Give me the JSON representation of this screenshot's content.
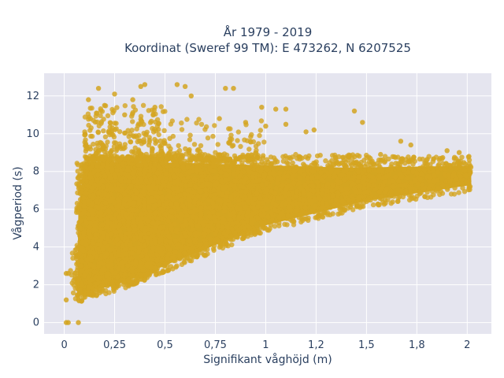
{
  "chart_data": {
    "type": "scatter",
    "title_line1": "År 1979 - 2019",
    "title_line2": "Koordinat (Sweref 99 TM): E 473262, N 6207525",
    "xlabel": "Signifikant våghöjd (m)",
    "ylabel": "Vågperiod (s)",
    "xlim": [
      -0.1,
      2.12
    ],
    "ylim": [
      -0.6,
      13.2
    ],
    "x_ticks": [
      0,
      0.25,
      0.5,
      0.75,
      1,
      1.25,
      1.5,
      1.75,
      2
    ],
    "x_tick_labels": [
      "0",
      "0,25",
      "0,5",
      "0,75",
      "1",
      "1,2",
      "1,5",
      "1,8",
      "2"
    ],
    "y_ticks": [
      0,
      2,
      4,
      6,
      8,
      10,
      12
    ],
    "y_tick_labels": [
      "0",
      "2",
      "4",
      "6",
      "8",
      "10",
      "12"
    ],
    "grid": true,
    "marker_color": "#d4a520",
    "plot_background": "#e5e5ef",
    "series": [
      {
        "outliers": [
          [
            0.01,
            0.0
          ],
          [
            0.02,
            0.0
          ],
          [
            0.07,
            0.0
          ],
          [
            0.01,
            1.2
          ],
          [
            0.01,
            2.6
          ],
          [
            0.02,
            2.6
          ],
          [
            0.12,
            11.8
          ],
          [
            0.17,
            12.4
          ],
          [
            0.2,
            11.5
          ],
          [
            0.25,
            12.1
          ],
          [
            0.38,
            12.5
          ],
          [
            0.4,
            12.6
          ],
          [
            0.56,
            12.6
          ],
          [
            0.6,
            12.5
          ],
          [
            0.8,
            12.4
          ],
          [
            0.84,
            12.4
          ],
          [
            0.63,
            12.0
          ],
          [
            0.34,
            11.8
          ],
          [
            0.98,
            11.4
          ],
          [
            1.05,
            11.3
          ],
          [
            1.1,
            11.3
          ],
          [
            1.44,
            11.2
          ],
          [
            1.1,
            10.5
          ],
          [
            1.2,
            10.1
          ],
          [
            1.24,
            10.2
          ],
          [
            1.48,
            10.6
          ],
          [
            1.67,
            9.6
          ],
          [
            1.57,
            8.9
          ],
          [
            1.72,
            9.4
          ],
          [
            1.9,
            9.1
          ],
          [
            1.96,
            9.0
          ],
          [
            0.9,
            10.6
          ],
          [
            1.0,
            10.4
          ],
          [
            0.77,
            10.8
          ],
          [
            0.3,
            11.0
          ],
          [
            0.45,
            11.4
          ]
        ],
        "density_bands": [
          {
            "x_min": 0.03,
            "x_max": 0.09,
            "y_min": 1.2,
            "y_max": 4.0,
            "n": 40
          },
          {
            "x_min": 0.06,
            "x_max": 0.14,
            "y_min": 1.1,
            "y_max": 8.5,
            "n": 300
          },
          {
            "x_min": 0.12,
            "x_max": 0.5,
            "y_min": 1.4,
            "y_max": 8.8,
            "n": 1500
          },
          {
            "x_min": 0.1,
            "x_max": 0.5,
            "y_min": 8.6,
            "y_max": 11.5,
            "n": 300
          },
          {
            "x_min": 0.5,
            "x_max": 1.0,
            "y_min": 2.2,
            "y_max": 8.9,
            "n": 1100
          },
          {
            "x_min": 0.5,
            "x_max": 1.0,
            "y_min": 8.6,
            "y_max": 10.8,
            "n": 120
          },
          {
            "x_min": 1.0,
            "x_max": 1.5,
            "y_min": 4.2,
            "y_max": 8.9,
            "n": 600
          },
          {
            "x_min": 1.5,
            "x_max": 2.02,
            "y_min": 5.6,
            "y_max": 8.8,
            "n": 350
          }
        ]
      }
    ]
  }
}
